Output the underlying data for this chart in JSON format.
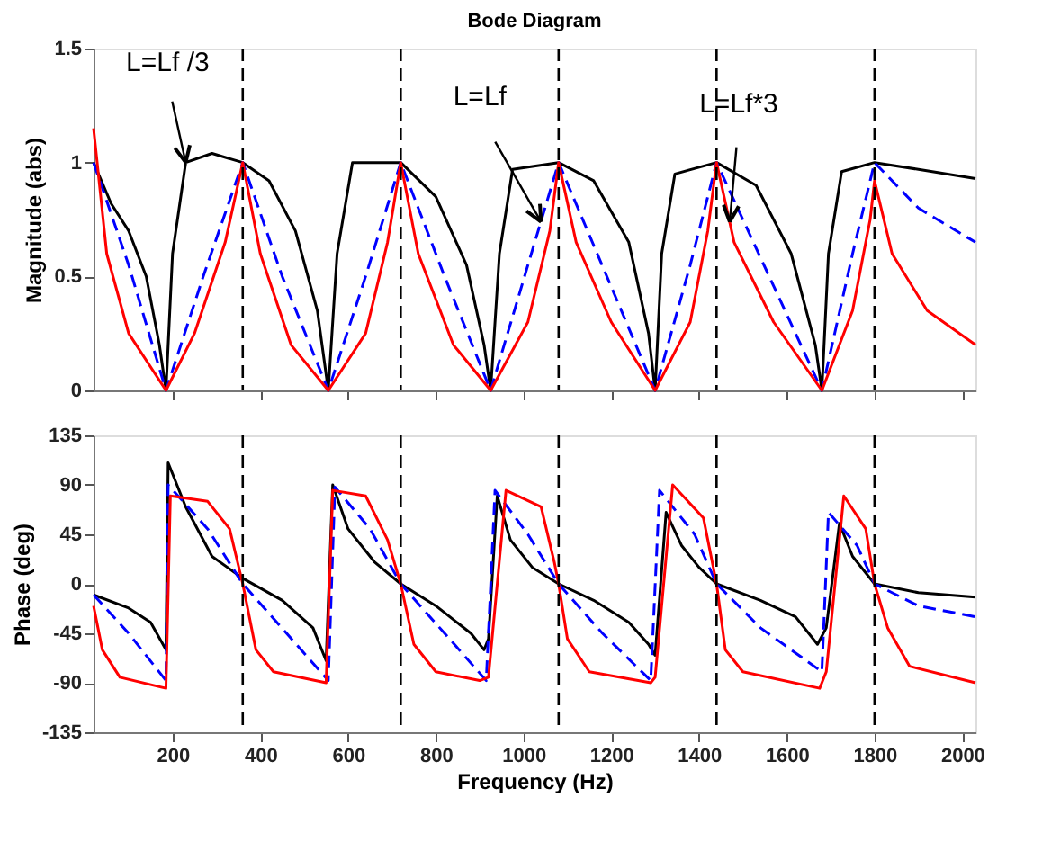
{
  "chart_data": [
    {
      "type": "line",
      "title": "Bode Diagram",
      "ylabel": "Magnitude (abs)",
      "xlim": [
        20,
        2030
      ],
      "xticks": [
        200,
        400,
        600,
        800,
        1000,
        1200,
        1400,
        1600,
        1800,
        2000
      ],
      "ylim": [
        0,
        1.5
      ],
      "yticks": [
        0,
        0.5,
        1,
        1.5
      ],
      "tick_labels": "y",
      "grid": false,
      "legend": false,
      "series": [
        {
          "color": "#000000",
          "line_style": "solid",
          "x": [
            20,
            60,
            100,
            140,
            170,
            185,
            200,
            230,
            290,
            360,
            420,
            480,
            530,
            555,
            575,
            610,
            720,
            800,
            870,
            910,
            925,
            945,
            975,
            1080,
            1160,
            1240,
            1285,
            1300,
            1315,
            1345,
            1440,
            1530,
            1610,
            1665,
            1680,
            1695,
            1725,
            1800,
            1900,
            2030
          ],
          "values": [
            1.0,
            0.82,
            0.7,
            0.5,
            0.2,
            0.0,
            0.6,
            1.0,
            1.04,
            1.0,
            0.92,
            0.7,
            0.35,
            0.0,
            0.6,
            1.0,
            1.0,
            0.85,
            0.55,
            0.2,
            0.0,
            0.6,
            0.97,
            1.0,
            0.92,
            0.65,
            0.25,
            0.0,
            0.6,
            0.95,
            1.0,
            0.9,
            0.6,
            0.2,
            0.0,
            0.6,
            0.96,
            1.0,
            0.97,
            0.93
          ]
        },
        {
          "color": "#0000ff",
          "line_style": "dashed",
          "x": [
            20,
            100,
            185,
            270,
            360,
            450,
            555,
            640,
            720,
            820,
            925,
            1010,
            1080,
            1190,
            1300,
            1380,
            1440,
            1560,
            1680,
            1750,
            1800,
            1900,
            2030
          ],
          "values": [
            1.0,
            0.55,
            0.0,
            0.5,
            1.0,
            0.5,
            0.0,
            0.5,
            1.0,
            0.5,
            0.0,
            0.55,
            1.0,
            0.5,
            0.0,
            0.55,
            1.0,
            0.5,
            0.0,
            0.6,
            1.0,
            0.8,
            0.65
          ]
        },
        {
          "color": "#ff0000",
          "line_style": "solid",
          "x": [
            20,
            50,
            100,
            185,
            250,
            320,
            360,
            400,
            470,
            555,
            640,
            690,
            720,
            760,
            840,
            925,
            1010,
            1060,
            1080,
            1120,
            1200,
            1300,
            1380,
            1420,
            1440,
            1480,
            1570,
            1680,
            1750,
            1790,
            1800,
            1840,
            1920,
            2030
          ],
          "values": [
            1.15,
            0.6,
            0.25,
            0.0,
            0.25,
            0.65,
            1.0,
            0.6,
            0.2,
            0.0,
            0.25,
            0.65,
            1.0,
            0.6,
            0.2,
            0.0,
            0.3,
            0.7,
            1.0,
            0.65,
            0.3,
            0.0,
            0.3,
            0.7,
            1.0,
            0.65,
            0.3,
            0.0,
            0.35,
            0.75,
            0.92,
            0.6,
            0.35,
            0.2
          ]
        }
      ],
      "ref_lines": [
        {
          "axis": "x",
          "value": 360,
          "color": "#000000",
          "line_style": "dashed"
        },
        {
          "axis": "x",
          "value": 720,
          "color": "#000000",
          "line_style": "dashed"
        },
        {
          "axis": "x",
          "value": 1080,
          "color": "#000000",
          "line_style": "dashed"
        },
        {
          "axis": "x",
          "value": 1440,
          "color": "#000000",
          "line_style": "dashed"
        },
        {
          "axis": "x",
          "value": 1800,
          "color": "#000000",
          "line_style": "dashed"
        }
      ],
      "annotations": [
        {
          "text": "L=Lf /3",
          "x": 230,
          "y": 1.0
        },
        {
          "text": "L=Lf",
          "x": 1040,
          "y": 0.74
        },
        {
          "text": "L=Lf*3",
          "x": 1470,
          "y": 0.74
        }
      ]
    },
    {
      "type": "line",
      "xlabel": "Frequency (Hz)",
      "ylabel": "Phase (deg)",
      "xlim": [
        20,
        2030
      ],
      "xticks": [
        200,
        400,
        600,
        800,
        1000,
        1200,
        1400,
        1600,
        1800,
        2000
      ],
      "ylim": [
        -135,
        135
      ],
      "yticks": [
        -135,
        -90,
        -45,
        0,
        45,
        90,
        135
      ],
      "grid": false,
      "legend": false,
      "series": [
        {
          "color": "#000000",
          "line_style": "solid",
          "x": [
            20,
            100,
            150,
            185,
            190,
            230,
            290,
            360,
            450,
            520,
            550,
            565,
            600,
            660,
            720,
            800,
            880,
            910,
            920,
            940,
            970,
            1020,
            1080,
            1160,
            1240,
            1285,
            1300,
            1325,
            1360,
            1400,
            1440,
            1540,
            1620,
            1670,
            1690,
            1720,
            1750,
            1800,
            1900,
            2030
          ],
          "values": [
            -10,
            -22,
            -35,
            -60,
            110,
            70,
            25,
            5,
            -15,
            -40,
            -70,
            90,
            50,
            20,
            0,
            -20,
            -45,
            -60,
            -50,
            80,
            40,
            15,
            0,
            -15,
            -35,
            -55,
            -65,
            65,
            35,
            15,
            0,
            -15,
            -30,
            -55,
            -40,
            55,
            25,
            0,
            -8,
            -12
          ]
        },
        {
          "color": "#0000ff",
          "line_style": "dashed",
          "x": [
            20,
            100,
            185,
            190,
            280,
            360,
            460,
            555,
            570,
            650,
            720,
            820,
            915,
            935,
            1010,
            1080,
            1180,
            1290,
            1310,
            1390,
            1440,
            1540,
            1680,
            1695,
            1760,
            1800,
            1900,
            2030
          ],
          "values": [
            -10,
            -45,
            -88,
            90,
            50,
            0,
            -45,
            -88,
            88,
            50,
            0,
            -45,
            -88,
            85,
            45,
            0,
            -45,
            -88,
            85,
            45,
            0,
            -40,
            -80,
            65,
            35,
            0,
            -20,
            -30
          ]
        },
        {
          "color": "#ff0000",
          "line_style": "solid",
          "x": [
            20,
            40,
            80,
            185,
            195,
            280,
            330,
            360,
            390,
            430,
            550,
            565,
            640,
            690,
            720,
            750,
            800,
            900,
            920,
            960,
            1040,
            1070,
            1080,
            1100,
            1150,
            1290,
            1300,
            1340,
            1410,
            1435,
            1440,
            1460,
            1500,
            1675,
            1690,
            1730,
            1780,
            1800,
            1830,
            1880,
            2030
          ],
          "values": [
            -20,
            -60,
            -85,
            -95,
            80,
            75,
            50,
            0,
            -60,
            -80,
            -90,
            85,
            80,
            40,
            0,
            -55,
            -80,
            -88,
            -85,
            85,
            70,
            20,
            0,
            -50,
            -80,
            -90,
            -85,
            90,
            60,
            10,
            0,
            -60,
            -80,
            -95,
            -80,
            80,
            50,
            0,
            -40,
            -75,
            -90
          ]
        }
      ],
      "ref_lines": [
        {
          "axis": "x",
          "value": 360,
          "color": "#000000",
          "line_style": "dashed"
        },
        {
          "axis": "x",
          "value": 720,
          "color": "#000000",
          "line_style": "dashed"
        },
        {
          "axis": "x",
          "value": 1080,
          "color": "#000000",
          "line_style": "dashed"
        },
        {
          "axis": "x",
          "value": 1440,
          "color": "#000000",
          "line_style": "dashed"
        },
        {
          "axis": "x",
          "value": 1800,
          "color": "#000000",
          "line_style": "dashed"
        }
      ]
    }
  ]
}
